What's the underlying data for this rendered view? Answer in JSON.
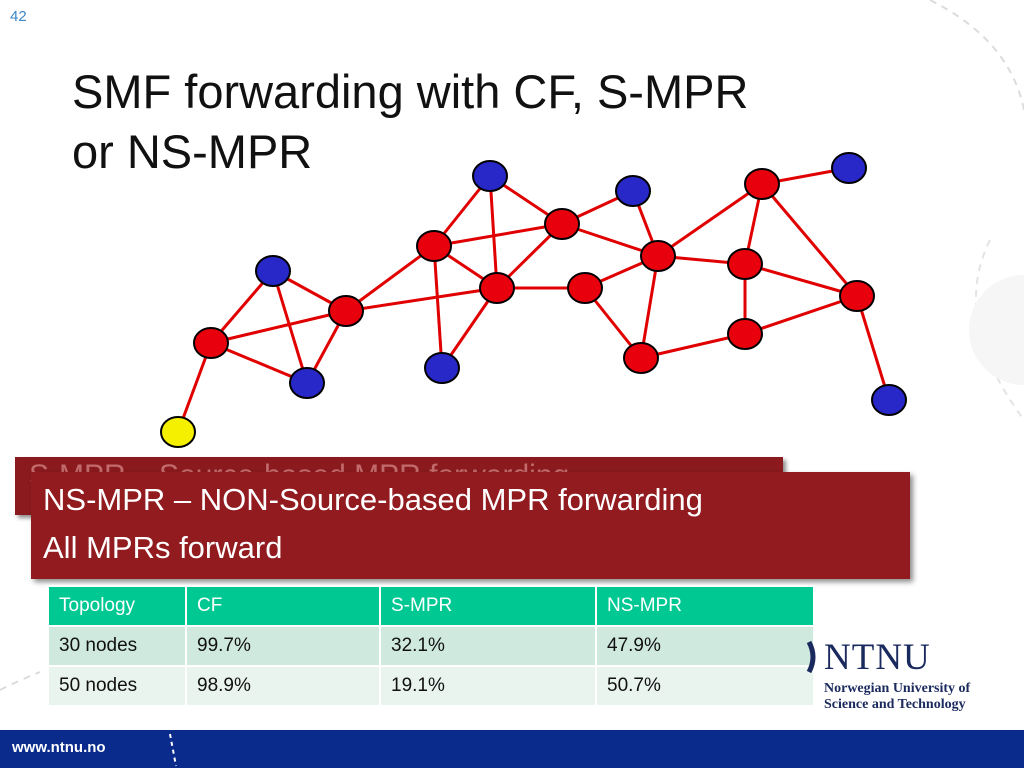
{
  "slide_number": "42",
  "title_line1": "SMF forwarding with CF, S-MPR",
  "title_line2": "or NS-MPR",
  "behind_box_text": "S-MPR – Source-based MPR forwarding",
  "front_box": {
    "line1": "NS-MPR – NON-Source-based MPR forwarding",
    "line2": "All MPRs forward"
  },
  "table": {
    "headers": [
      "Topology",
      "CF",
      "S-MPR",
      "NS-MPR"
    ],
    "rows": [
      [
        "30 nodes",
        "99.7%",
        "32.1%",
        "47.9%"
      ],
      [
        "50 nodes",
        "98.9%",
        "19.1%",
        "50.7%"
      ]
    ]
  },
  "logo": {
    "name": "NTNU",
    "sub_line1": "Norwegian University of",
    "sub_line2": "Science and Technology"
  },
  "footer_url": "www.ntnu.no",
  "colors": {
    "mpr_node": "#e8000d",
    "non_mpr_node": "#2828c8",
    "source_node": "#f5f000",
    "link": "#e00000",
    "box": "#911b1f",
    "table_header": "#00c893",
    "footer": "#0a2a8c"
  },
  "icons": [
    "ntnu-logo-mark-icon"
  ]
}
